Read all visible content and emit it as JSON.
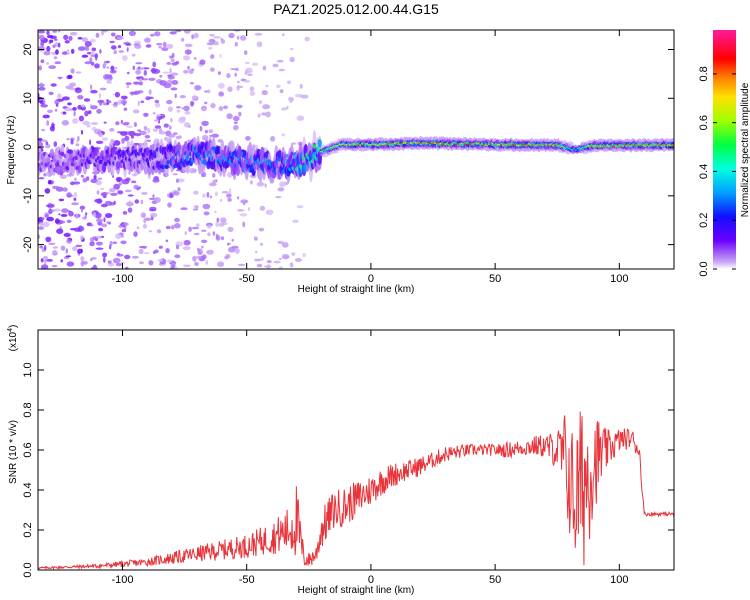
{
  "colors": {
    "snr_line": "#e8343a",
    "axis": "#000000",
    "background": "#ffffff"
  },
  "chart_data": [
    {
      "type": "heatmap",
      "title": "PAZ1.2025.012.00.44.G15",
      "xlabel": "Height of straight line (km)",
      "ylabel": "Frequency (Hz)",
      "xlim": [
        -134,
        122
      ],
      "ylim": [
        -25,
        24
      ],
      "x_ticks": [
        -100,
        -50,
        0,
        50,
        100
      ],
      "y_ticks": [
        -20,
        -10,
        0,
        10,
        20
      ],
      "colorbar": {
        "label": "Normalized spectral amplitude",
        "range": [
          0,
          1
        ],
        "ticks": [
          "0.0",
          "0.2",
          "0.4",
          "0.6",
          "0.8"
        ],
        "colormap": "rainbow (purple-blue-cyan-green-yellow-orange-red-magenta)"
      },
      "ridge": {
        "x": [
          -130,
          -110,
          -90,
          -70,
          -50,
          -35,
          -28,
          -20,
          -12,
          0,
          20,
          50,
          75,
          82,
          90,
          122
        ],
        "frequency": [
          -3,
          -2.5,
          -2.5,
          -1.5,
          -3,
          -3.5,
          -3,
          -1,
          0.5,
          0.5,
          0.8,
          0.5,
          0.4,
          -0.5,
          0.3,
          0.4
        ],
        "amplitude": [
          0.1,
          0.15,
          0.2,
          0.3,
          0.3,
          0.3,
          0.45,
          0.55,
          0.7,
          0.8,
          0.8,
          0.8,
          0.8,
          0.4,
          0.8,
          0.8
        ]
      }
    },
    {
      "type": "line",
      "xlabel": "Height of straight line (km)",
      "ylabel": "SNR (10 * v/v)",
      "y_multiplier": "(x10",
      "y_multiplier_exp": "4",
      "y_multiplier_close": ")",
      "xlim": [
        -134,
        122
      ],
      "ylim": [
        0,
        1.2
      ],
      "x_ticks": [
        -100,
        -50,
        0,
        50,
        100
      ],
      "y_ticks": [
        "0.0",
        "0.2",
        "0.4",
        "0.6",
        "0.8",
        "1.0"
      ],
      "series": [
        {
          "x": [
            -134,
            -110,
            -90,
            -80,
            -70,
            -60,
            -50,
            -40,
            -33,
            -30,
            -27,
            -25,
            -22,
            -20,
            -15,
            -10,
            -5,
            0,
            5,
            10,
            15,
            20,
            25,
            30,
            40,
            50,
            55,
            60,
            65,
            70,
            75,
            78,
            80,
            82,
            84,
            86,
            88,
            90,
            95,
            100,
            105,
            108,
            110,
            115,
            122
          ],
          "values": [
            0.01,
            0.02,
            0.04,
            0.06,
            0.08,
            0.1,
            0.12,
            0.16,
            0.2,
            0.25,
            0.06,
            0.05,
            0.08,
            0.2,
            0.3,
            0.32,
            0.36,
            0.4,
            0.45,
            0.48,
            0.5,
            0.52,
            0.55,
            0.58,
            0.6,
            0.6,
            0.6,
            0.61,
            0.62,
            0.62,
            0.6,
            0.55,
            0.45,
            0.35,
            0.4,
            0.45,
            0.5,
            0.55,
            0.6,
            0.65,
            0.66,
            0.6,
            0.28,
            0.28,
            0.28
          ],
          "noise": [
            0.005,
            0.01,
            0.02,
            0.03,
            0.04,
            0.05,
            0.06,
            0.08,
            0.12,
            0.2,
            0.05,
            0.04,
            0.05,
            0.1,
            0.1,
            0.1,
            0.09,
            0.08,
            0.07,
            0.06,
            0.05,
            0.05,
            0.04,
            0.04,
            0.03,
            0.03,
            0.04,
            0.04,
            0.05,
            0.06,
            0.1,
            0.25,
            0.3,
            0.35,
            0.4,
            0.45,
            0.35,
            0.25,
            0.1,
            0.06,
            0.05,
            0.05,
            0.01,
            0.01,
            0.01
          ]
        }
      ]
    }
  ]
}
